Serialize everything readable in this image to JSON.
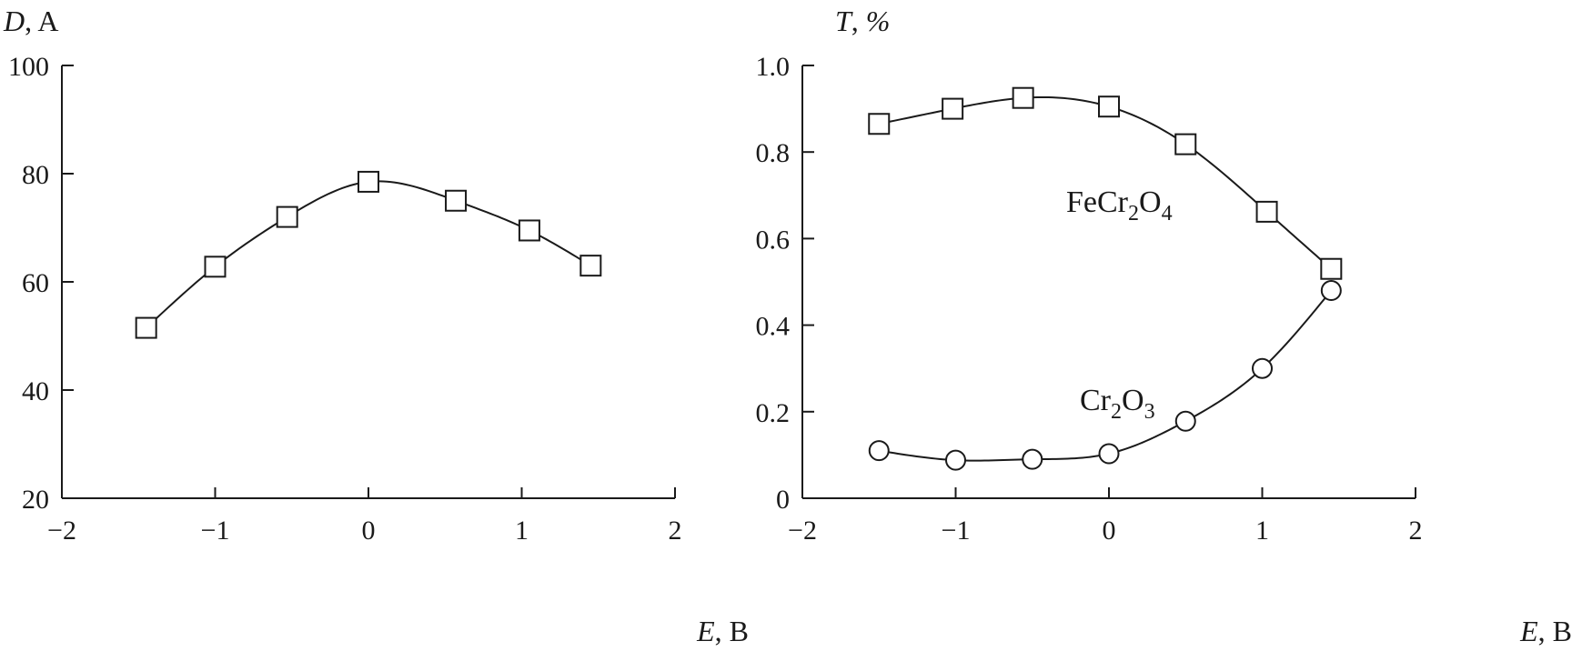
{
  "chart_data": [
    {
      "type": "line",
      "title": "",
      "ylabel": {
        "var": "D",
        "unit": "A"
      },
      "xlabel": {
        "var": "E",
        "unit": "B"
      },
      "xlim": [
        -2,
        2
      ],
      "ylim": [
        20,
        100
      ],
      "xticks": [
        -2,
        -1,
        0,
        1,
        2
      ],
      "xtick_labels": [
        "−2",
        "−1",
        "0",
        "1",
        "2"
      ],
      "yticks": [
        20,
        40,
        60,
        80,
        100
      ],
      "ytick_labels": [
        "20",
        "40",
        "60",
        "80",
        "100"
      ],
      "grid": false,
      "series": [
        {
          "marker": "square",
          "x": [
            -1.45,
            -1.0,
            -0.53,
            0.0,
            0.57,
            1.05,
            1.45
          ],
          "y": [
            51.5,
            62.8,
            72.0,
            78.5,
            75.0,
            69.5,
            63.0
          ]
        }
      ],
      "annotations": []
    },
    {
      "type": "line",
      "title": "",
      "ylabel": {
        "var": "T",
        "unit": "%"
      },
      "xlabel": {
        "var": "E",
        "unit": "B"
      },
      "xlim": [
        -2,
        2
      ],
      "ylim": [
        0,
        1.0
      ],
      "xticks": [
        -2,
        -1,
        0,
        1,
        2
      ],
      "xtick_labels": [
        "−2",
        "−1",
        "0",
        "1",
        "2"
      ],
      "yticks": [
        0,
        0.2,
        0.4,
        0.6,
        0.8,
        1.0
      ],
      "ytick_labels": [
        "0",
        "0.2",
        "0.4",
        "0.6",
        "0.8",
        "1.0"
      ],
      "grid": false,
      "series": [
        {
          "marker": "square",
          "x": [
            -1.5,
            -1.02,
            -0.56,
            0.0,
            0.5,
            1.03,
            1.45
          ],
          "y": [
            0.865,
            0.9,
            0.925,
            0.905,
            0.818,
            0.662,
            0.53
          ]
        },
        {
          "marker": "circle",
          "x": [
            -1.5,
            -1.0,
            -0.5,
            0.0,
            0.5,
            1.0,
            1.45
          ],
          "y": [
            0.11,
            0.088,
            0.09,
            0.103,
            0.178,
            0.3,
            0.48
          ]
        }
      ],
      "annotations": [
        {
          "base": "FeCr",
          "sub1": "2",
          "mid": "O",
          "sub2": "4"
        },
        {
          "base": "Cr",
          "sub1": "2",
          "mid": "O",
          "sub2": "3"
        }
      ]
    }
  ]
}
